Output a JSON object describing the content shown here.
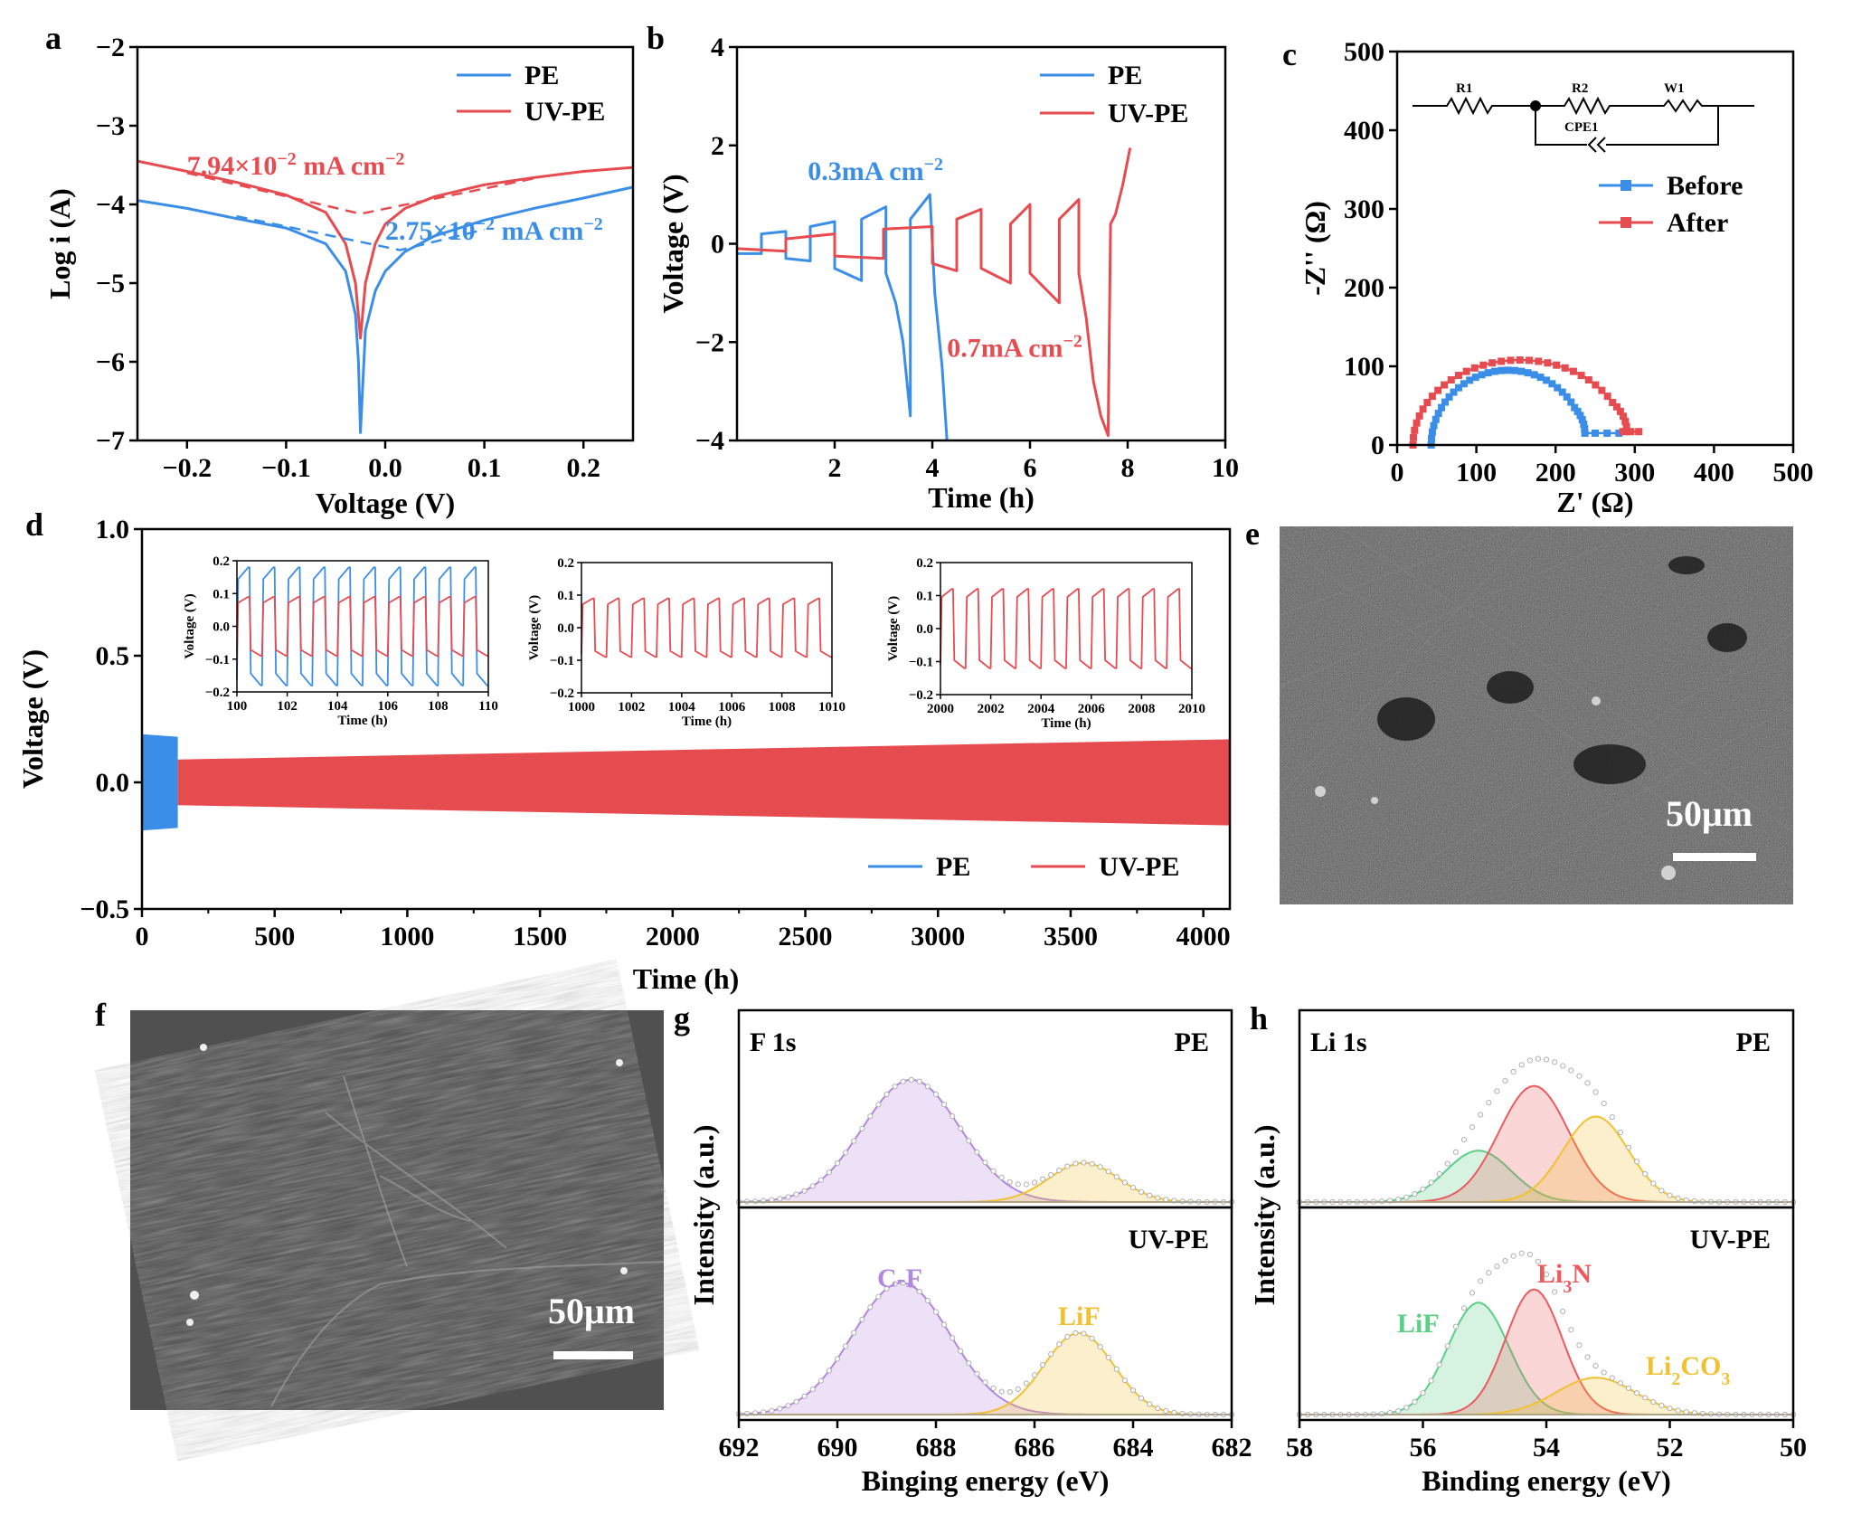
{
  "colors": {
    "pe": "#3b8ee8",
    "uvpe": "#e64b50",
    "fit_cf": "#b287e0",
    "fit_lif": "#f2c132",
    "fit_li3n": "#ec5a5e",
    "fit_lif_li": "#5ccf86",
    "fit_li2co3": "#f2c132"
  },
  "panels": {
    "a": "a",
    "b": "b",
    "c": "c",
    "d": "d",
    "e": "e",
    "f": "f",
    "g": "g",
    "h": "h"
  },
  "chart_data": [
    {
      "panel": "a",
      "type": "line",
      "xlabel": "Voltage (V)",
      "ylabel": "Log i (A)",
      "xlim": [
        -0.25,
        0.25
      ],
      "ylim": [
        -7,
        -2
      ],
      "xticks": [
        -0.2,
        -0.1,
        0.0,
        0.1,
        0.2
      ],
      "xtick_labels": [
        "−0.2",
        "−0.1",
        "0.0",
        "0.1",
        "0.2"
      ],
      "yticks": [
        -7,
        -6,
        -5,
        -4,
        -3,
        -2
      ],
      "ytick_labels": [
        "−7",
        "−6",
        "−5",
        "−4",
        "−3",
        "−2"
      ],
      "legend": [
        "PE",
        "UV-PE"
      ],
      "legend_position": "top-right",
      "series": [
        {
          "name": "PE",
          "x": [
            -0.25,
            -0.2,
            -0.15,
            -0.1,
            -0.06,
            -0.04,
            -0.03,
            -0.027,
            -0.025,
            -0.02,
            -0.01,
            0.0,
            0.02,
            0.05,
            0.1,
            0.15,
            0.2,
            0.25
          ],
          "y": [
            -3.95,
            -4.05,
            -4.18,
            -4.3,
            -4.5,
            -4.85,
            -5.4,
            -6.0,
            -6.9,
            -5.6,
            -5.1,
            -4.85,
            -4.6,
            -4.4,
            -4.2,
            -4.05,
            -3.92,
            -3.78
          ]
        },
        {
          "name": "UV-PE",
          "x": [
            -0.25,
            -0.2,
            -0.15,
            -0.1,
            -0.06,
            -0.04,
            -0.03,
            -0.025,
            -0.02,
            -0.01,
            0.0,
            0.02,
            0.05,
            0.1,
            0.15,
            0.2,
            0.25
          ],
          "y": [
            -3.45,
            -3.58,
            -3.72,
            -3.88,
            -4.1,
            -4.5,
            -5.0,
            -5.7,
            -5.0,
            -4.5,
            -4.25,
            -4.05,
            -3.9,
            -3.75,
            -3.66,
            -3.58,
            -3.53
          ]
        }
      ],
      "tafel_fits": [
        {
          "series": "PE",
          "x": [
            -0.15,
            0.015,
            0.1
          ],
          "y": [
            -4.15,
            -4.58,
            -4.32
          ]
        },
        {
          "series": "UV-PE",
          "x": [
            -0.2,
            -0.025,
            0.15
          ],
          "y": [
            -3.6,
            -4.12,
            -3.67
          ]
        }
      ],
      "annotations": [
        {
          "text": "7.94×10",
          "sup": "−2",
          "tail": " mA cm",
          "tail_sup": "−2",
          "series": "UV-PE",
          "x": -0.2,
          "y": -3.62
        },
        {
          "text": "2.75×10",
          "sup": "−2",
          "tail": " mA cm",
          "tail_sup": "−2",
          "series": "PE",
          "x": 0.0,
          "y": -4.45
        }
      ]
    },
    {
      "panel": "b",
      "type": "line",
      "xlabel": "Time (h)",
      "ylabel": "Voltage (V)",
      "xlim": [
        0,
        10
      ],
      "ylim": [
        -4,
        4
      ],
      "xticks": [
        2,
        4,
        6,
        8,
        10
      ],
      "xtick_labels": [
        "2",
        "4",
        "6",
        "8",
        "10"
      ],
      "yticks": [
        -4,
        -2,
        0,
        2,
        4
      ],
      "ytick_labels": [
        "−4",
        "−2",
        "0",
        "2",
        "4"
      ],
      "legend": [
        "PE",
        "UV-PE"
      ],
      "legend_position": "top-right",
      "series": [
        {
          "name": "PE",
          "x": [
            0,
            0.5,
            0.5,
            1.0,
            1.0,
            1.5,
            1.5,
            2.0,
            2.0,
            2.55,
            2.55,
            3.05,
            3.05,
            3.25,
            3.4,
            3.55,
            3.55,
            3.95,
            4.05,
            4.2,
            4.3
          ],
          "y": [
            -0.2,
            -0.2,
            0.2,
            0.25,
            -0.3,
            -0.35,
            0.35,
            0.45,
            -0.5,
            -0.75,
            0.5,
            0.75,
            -0.6,
            -1.2,
            -2.0,
            -3.5,
            0.5,
            1.0,
            -1.0,
            -2.5,
            -4.0
          ]
        },
        {
          "name": "UV-PE",
          "x": [
            0,
            1.0,
            1.0,
            2.0,
            2.0,
            3.0,
            3.0,
            4.0,
            4.0,
            4.5,
            4.5,
            5.0,
            5.0,
            5.6,
            5.6,
            6.0,
            6.0,
            6.6,
            6.6,
            7.0,
            7.0,
            7.15,
            7.3,
            7.45,
            7.6,
            7.65,
            7.75,
            7.9,
            8.05
          ],
          "y": [
            -0.1,
            -0.15,
            0.1,
            0.2,
            -0.25,
            -0.3,
            0.3,
            0.35,
            -0.4,
            -0.55,
            0.5,
            0.7,
            -0.5,
            -0.8,
            0.4,
            0.8,
            -0.6,
            -1.2,
            0.5,
            0.9,
            -0.6,
            -1.5,
            -2.8,
            -3.5,
            -3.9,
            0.4,
            0.6,
            1.2,
            1.95
          ]
        }
      ],
      "annotations": [
        {
          "text": "0.3mA cm",
          "sup": "−2",
          "series": "PE",
          "x": 1.45,
          "y": 1.3
        },
        {
          "text": "0.7mA cm",
          "sup": "−2",
          "series": "UV-PE",
          "x": 4.3,
          "y": -2.3
        }
      ]
    },
    {
      "panel": "c",
      "type": "scatter",
      "xlabel": "Z' (Ω)",
      "ylabel": "-Z'' (Ω)",
      "xlim": [
        0,
        500
      ],
      "ylim": [
        0,
        500
      ],
      "xticks": [
        0,
        100,
        200,
        300,
        400,
        500
      ],
      "yticks": [
        0,
        100,
        200,
        300,
        400,
        500
      ],
      "legend": [
        "Before",
        "After"
      ],
      "legend_position": "top-right",
      "series": [
        {
          "name": "Before",
          "center": 140,
          "radius": 97,
          "y_peak": 95,
          "tail_x": [
            250,
            265,
            280
          ],
          "tail_y": 15
        },
        {
          "name": "After",
          "center": 155,
          "radius": 135,
          "y_peak": 108,
          "tail_x": [
            285,
            295,
            305
          ],
          "tail_y": 17
        }
      ],
      "circuit_labels": [
        "R1",
        "R2",
        "W1",
        "CPE1"
      ]
    },
    {
      "panel": "d",
      "type": "line",
      "xlabel": "Time (h)",
      "ylabel": "Voltage (V)",
      "xlim": [
        0,
        4100
      ],
      "ylim": [
        -0.5,
        1.0
      ],
      "xticks": [
        0,
        500,
        1000,
        1500,
        2000,
        2500,
        3000,
        3500,
        4000
      ],
      "yticks": [
        -0.5,
        0.0,
        0.5,
        1.0
      ],
      "ytick_labels": [
        "−0.5",
        "0.0",
        "0.5",
        "1.0"
      ],
      "legend": [
        "PE",
        "UV-PE"
      ],
      "legend_position": "bottom-right",
      "series": [
        {
          "name": "PE",
          "x_range": [
            0,
            135
          ],
          "amplitude_start": 0.19,
          "amplitude_end": 0.18
        },
        {
          "name": "UV-PE",
          "x_range": [
            135,
            4100
          ],
          "amplitude_start": 0.09,
          "amplitude_end": 0.17
        }
      ],
      "insets": [
        {
          "xlim": [
            100,
            110
          ],
          "ylim": [
            -0.2,
            0.2
          ],
          "xticks": [
            100,
            102,
            104,
            106,
            108,
            110
          ],
          "yticks": [
            -0.2,
            -0.1,
            0.0,
            0.1,
            0.2
          ],
          "ytick_labels": [
            "−0.2",
            "−0.1",
            "0.0",
            "0.1",
            "0.2"
          ],
          "xlabel": "Time (h)",
          "ylabel": "Voltage (V)",
          "series": [
            {
              "name": "PE",
              "amplitude": 0.18,
              "cycles": 10
            },
            {
              "name": "UV-PE",
              "amplitude": 0.09,
              "cycles": 10
            }
          ]
        },
        {
          "xlim": [
            1000,
            1010
          ],
          "ylim": [
            -0.2,
            0.2
          ],
          "xticks": [
            1000,
            1002,
            1004,
            1006,
            1008,
            1010
          ],
          "yticks": [
            -0.2,
            -0.1,
            0.0,
            0.1,
            0.2
          ],
          "ytick_labels": [
            "−0.2",
            "−0.1",
            "0.0",
            "0.1",
            "0.2"
          ],
          "xlabel": "Time (h)",
          "ylabel": "Voltage (V)",
          "series": [
            {
              "name": "UV-PE",
              "amplitude": 0.09,
              "cycles": 10
            }
          ]
        },
        {
          "xlim": [
            2000,
            2010
          ],
          "ylim": [
            -0.2,
            0.2
          ],
          "xticks": [
            2000,
            2002,
            2004,
            2006,
            2008,
            2010
          ],
          "yticks": [
            -0.2,
            -0.1,
            0.0,
            0.1,
            0.2
          ],
          "ytick_labels": [
            "−0.2",
            "−0.1",
            "0.0",
            "0.1",
            "0.2"
          ],
          "xlabel": "Time (h)",
          "ylabel": "Voltage (V)",
          "series": [
            {
              "name": "UV-PE",
              "amplitude": 0.12,
              "cycles": 10
            }
          ]
        }
      ]
    },
    {
      "panel": "g",
      "type": "area",
      "xlabel": "Binging energy (eV)",
      "ylabel": "Intensity (a.u.)",
      "xlim": [
        692,
        682
      ],
      "xticks": [
        692,
        690,
        688,
        686,
        684,
        682
      ],
      "spectrum_label": "F 1s",
      "subpanels": [
        {
          "label": "PE",
          "peaks": [
            {
              "name": "C-F",
              "center": 688.5,
              "height": 1.0,
              "width": 1.4,
              "color": "fit_cf"
            },
            {
              "name": "LiF",
              "center": 685.0,
              "height": 0.32,
              "width": 1.0,
              "color": "fit_lif"
            }
          ]
        },
        {
          "label": "UV-PE",
          "peaks": [
            {
              "name": "C-F",
              "center": 688.7,
              "height": 1.0,
              "width": 1.4,
              "color": "fit_cf"
            },
            {
              "name": "LiF",
              "center": 685.1,
              "height": 0.62,
              "width": 1.0,
              "color": "fit_lif"
            }
          ]
        }
      ],
      "peak_labels": [
        {
          "text": "C-F",
          "color": "fit_cf"
        },
        {
          "text": "LiF",
          "color": "fit_lif"
        }
      ]
    },
    {
      "panel": "h",
      "type": "area",
      "xlabel": "Binding energy (eV)",
      "ylabel": "Intensity (a.u.)",
      "xlim": [
        58,
        50
      ],
      "xticks": [
        58,
        56,
        54,
        52,
        50
      ],
      "spectrum_label": "Li 1s",
      "subpanels": [
        {
          "label": "PE",
          "peaks": [
            {
              "name": "LiF",
              "center": 55.1,
              "height": 0.42,
              "width": 0.75,
              "color": "fit_lif_li"
            },
            {
              "name": "Li3N",
              "center": 54.2,
              "height": 0.95,
              "width": 0.8,
              "color": "fit_li3n"
            },
            {
              "name": "Li2CO3",
              "center": 53.2,
              "height": 0.7,
              "width": 0.75,
              "color": "fit_li2co3"
            }
          ]
        },
        {
          "label": "UV-PE",
          "peaks": [
            {
              "name": "LiF",
              "center": 55.1,
              "height": 0.85,
              "width": 0.7,
              "color": "fit_lif_li"
            },
            {
              "name": "Li3N",
              "center": 54.2,
              "height": 0.95,
              "width": 0.65,
              "color": "fit_li3n"
            },
            {
              "name": "Li2CO3",
              "center": 53.2,
              "height": 0.28,
              "width": 0.9,
              "color": "fit_li2co3"
            }
          ]
        }
      ],
      "peak_labels": [
        {
          "text": "LiF",
          "color": "fit_lif_li"
        },
        {
          "text": "Li",
          "sub": "3",
          "tail": "N",
          "color": "fit_li3n"
        },
        {
          "text": "Li",
          "sub": "2",
          "tail": "CO",
          "sub2": "3",
          "color": "fit_li2co3"
        }
      ]
    }
  ],
  "sem_images": [
    {
      "panel": "e",
      "scale_label": "50μm"
    },
    {
      "panel": "f",
      "scale_label": "50μm"
    }
  ]
}
